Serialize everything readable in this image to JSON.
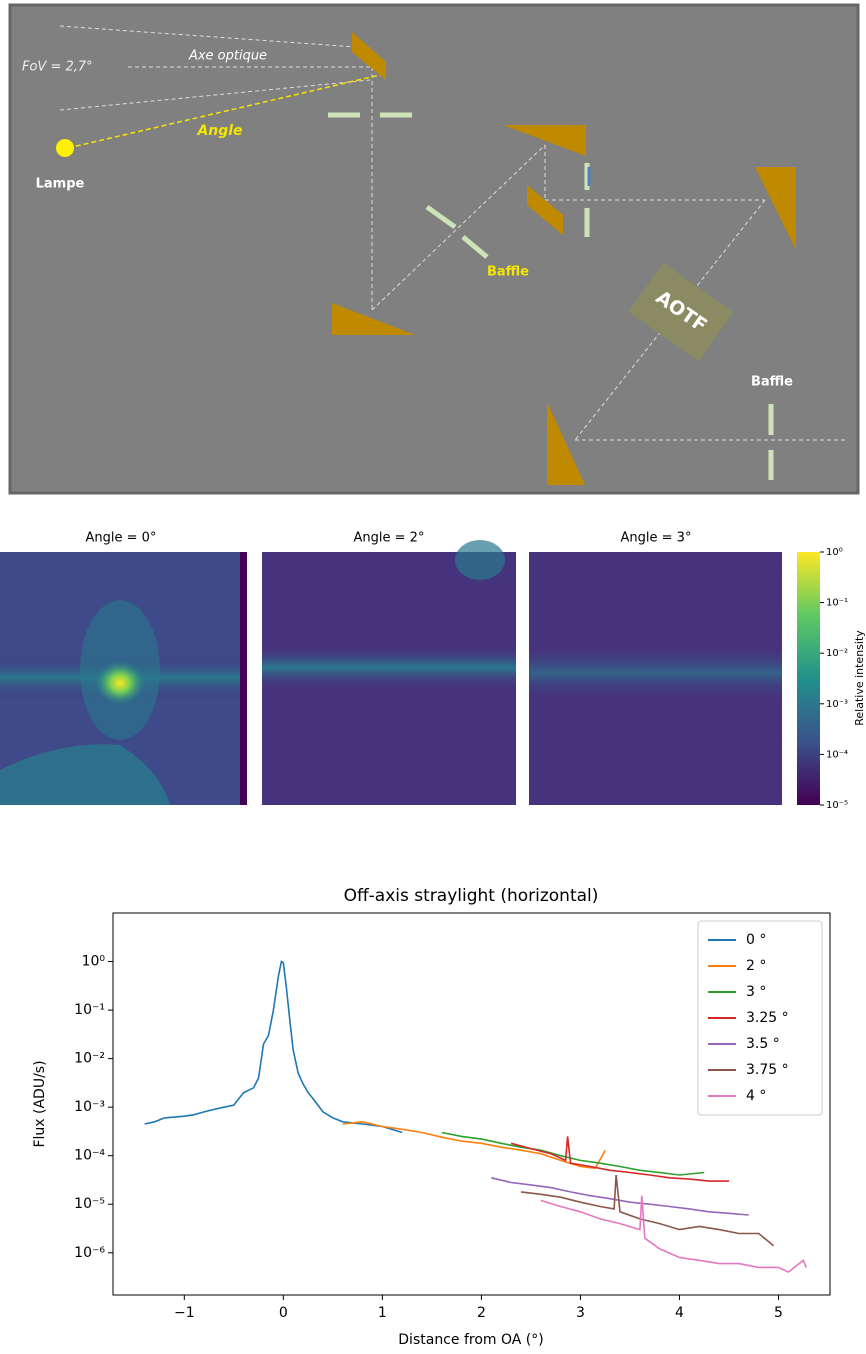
{
  "diagram": {
    "fov": "FoV = 2,7°",
    "axis": "Axe optique",
    "angle": "Angle",
    "lamp": "Lampe",
    "baffle1": "Baffle",
    "aotf": "AOTF",
    "baffle2": "Baffle"
  },
  "heatmaps": {
    "titles": [
      "Angle = 0°",
      "Angle = 2°",
      "Angle = 3°"
    ],
    "colorbar": {
      "label": "Relative intensity",
      "lim": [
        1e-05,
        1
      ],
      "ticks": [
        {
          "value": 1,
          "label": "10⁰"
        },
        {
          "value": 0.1,
          "label": "10⁻¹"
        },
        {
          "value": 0.01,
          "label": "10⁻²"
        },
        {
          "value": 0.001,
          "label": "10⁻³"
        },
        {
          "value": 0.0001,
          "label": "10⁻⁴"
        },
        {
          "value": 1e-05,
          "label": "10⁻⁵"
        }
      ]
    }
  },
  "chart_data": {
    "type": "line",
    "title": "Off-axis straylight (horizontal)",
    "x_label": "Distance from OA (°)",
    "y_label": "Flux (ADU/s)",
    "log_y": true,
    "grid": false,
    "legend": "upper-right",
    "xlim": [
      -1.72,
      5.52
    ],
    "ylim": [
      1.35e-07,
      10
    ],
    "xticks": [
      {
        "value": -1,
        "label": "−1"
      },
      0,
      1,
      2,
      3,
      4,
      5
    ],
    "yticks": [
      {
        "value": 1,
        "label": "10⁰"
      },
      {
        "value": 0.1,
        "label": "10⁻¹"
      },
      {
        "value": 0.01,
        "label": "10⁻²"
      },
      {
        "value": 0.001,
        "label": "10⁻³"
      },
      {
        "value": 0.0001,
        "label": "10⁻⁴"
      },
      {
        "value": 1e-05,
        "label": "10⁻⁵"
      },
      {
        "value": 1e-06,
        "label": "10⁻⁶"
      }
    ],
    "series": [
      {
        "name": "0 °",
        "color": "#1f77b4",
        "x": [
          -1.4,
          -1.3,
          -1.2,
          -1.0,
          -0.9,
          -0.8,
          -0.7,
          -0.6,
          -0.5,
          -0.45,
          -0.4,
          -0.3,
          -0.25,
          -0.2,
          -0.15,
          -0.1,
          -0.05,
          -0.02,
          0,
          0.03,
          0.07,
          0.1,
          0.15,
          0.2,
          0.25,
          0.3,
          0.4,
          0.5,
          0.6,
          0.8,
          1.0,
          1.2
        ],
        "values": [
          0.00045,
          0.0005,
          0.0006,
          0.00065,
          0.0007,
          0.0008,
          0.0009,
          0.001,
          0.0011,
          0.0015,
          0.002,
          0.0025,
          0.004,
          0.02,
          0.03,
          0.1,
          0.5,
          1,
          0.95,
          0.3,
          0.05,
          0.015,
          0.005,
          0.003,
          0.002,
          0.0015,
          0.0008,
          0.0006,
          0.0005,
          0.00045,
          0.0004,
          0.0003
        ]
      },
      {
        "name": "2 °",
        "color": "#ff7f0e",
        "x": [
          0.6,
          0.8,
          1.0,
          1.2,
          1.4,
          1.6,
          1.8,
          2.0,
          2.2,
          2.4,
          2.6,
          2.8,
          3.0,
          3.15,
          3.25
        ],
        "values": [
          0.00045,
          0.0005,
          0.0004,
          0.00035,
          0.0003,
          0.00024,
          0.0002,
          0.00018,
          0.00015,
          0.00013,
          0.00011,
          8e-05,
          6e-05,
          5.5e-05,
          0.00013
        ]
      },
      {
        "name": "3 °",
        "color": "#2ca02c",
        "x": [
          1.6,
          1.8,
          2.0,
          2.2,
          2.4,
          2.6,
          2.8,
          3.0,
          3.2,
          3.4,
          3.6,
          3.8,
          4.0,
          4.25
        ],
        "values": [
          0.0003,
          0.00025,
          0.00022,
          0.00018,
          0.00015,
          0.00013,
          0.0001,
          8e-05,
          7e-05,
          6e-05,
          5e-05,
          4.5e-05,
          4e-05,
          4.5e-05
        ]
      },
      {
        "name": "3.25 °",
        "color": "#d62728",
        "x": [
          2.3,
          2.5,
          2.7,
          2.85,
          2.87,
          2.9,
          3.1,
          3.3,
          3.5,
          3.7,
          3.9,
          4.1,
          4.3,
          4.5
        ],
        "values": [
          0.00018,
          0.00014,
          0.00011,
          8e-05,
          0.00025,
          7e-05,
          6e-05,
          5e-05,
          4.5e-05,
          4e-05,
          3.5e-05,
          3.3e-05,
          3e-05,
          3e-05
        ]
      },
      {
        "name": "3.5 °",
        "color": "#9467bd",
        "x": [
          2.1,
          2.3,
          2.5,
          2.7,
          2.9,
          3.1,
          3.3,
          3.5,
          3.7,
          3.9,
          4.1,
          4.3,
          4.5,
          4.7
        ],
        "values": [
          3.5e-05,
          2.8e-05,
          2.5e-05,
          2.2e-05,
          1.8e-05,
          1.5e-05,
          1.3e-05,
          1.1e-05,
          1e-05,
          9e-06,
          8e-06,
          7e-06,
          6.5e-06,
          6e-06
        ]
      },
      {
        "name": "3.75 °",
        "color": "#8c564b",
        "x": [
          2.4,
          2.6,
          2.8,
          3.0,
          3.2,
          3.34,
          3.36,
          3.4,
          3.6,
          3.8,
          4.0,
          4.2,
          4.4,
          4.6,
          4.8,
          4.95
        ],
        "values": [
          1.8e-05,
          1.6e-05,
          1.4e-05,
          1.1e-05,
          9e-06,
          8e-06,
          4e-05,
          7e-06,
          5e-06,
          4e-06,
          3e-06,
          3.5e-06,
          3e-06,
          2.5e-06,
          2.5e-06,
          1.4e-06
        ]
      },
      {
        "name": "4 °",
        "color": "#e377c2",
        "x": [
          2.6,
          2.8,
          3.0,
          3.2,
          3.4,
          3.6,
          3.62,
          3.65,
          3.8,
          4.0,
          4.2,
          4.4,
          4.6,
          4.8,
          5.0,
          5.1,
          5.25,
          5.28
        ],
        "values": [
          1.2e-05,
          9e-06,
          7e-06,
          5e-06,
          4e-06,
          3e-06,
          1.5e-05,
          2e-06,
          1.2e-06,
          8e-07,
          7e-07,
          6e-07,
          6e-07,
          5e-07,
          5e-07,
          4e-07,
          7e-07,
          5e-07
        ]
      }
    ]
  }
}
